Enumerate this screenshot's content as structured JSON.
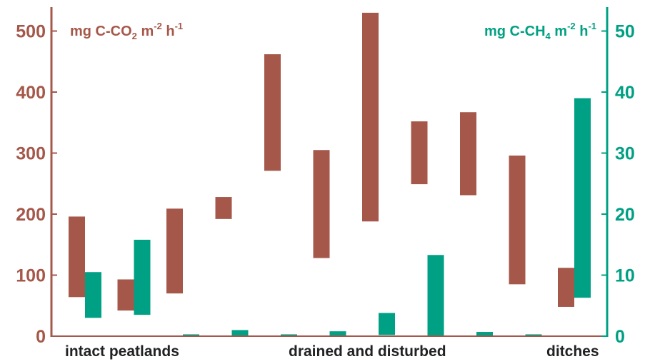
{
  "chart_data": {
    "type": "bar",
    "subtype": "floating-range",
    "colors": {
      "co2": "#a5584a",
      "ch4": "#00a084",
      "text": "#222222"
    },
    "left_axis": {
      "label_parts": [
        "mg C-CO",
        "2",
        " m",
        "-2",
        " h",
        "-1"
      ],
      "ylim": [
        0,
        535
      ],
      "ticks": [
        "0",
        "100",
        "200",
        "300",
        "400",
        "500"
      ]
    },
    "right_axis": {
      "label_parts": [
        "mg C-CH",
        "4",
        " m",
        "-2",
        " h",
        "-1"
      ],
      "ylim": [
        0,
        53.5
      ],
      "ticks": [
        "0",
        "10",
        "20",
        "30",
        "40",
        "50"
      ]
    },
    "groups": [
      "intact peatlands",
      "drained and disturbed",
      "ditches"
    ],
    "series": [
      {
        "key": "co2",
        "axis": "left",
        "ranges": [
          [
            64,
            196
          ],
          [
            42,
            93
          ],
          [
            70,
            209
          ],
          [
            192,
            228
          ],
          [
            271,
            462
          ],
          [
            128,
            305
          ],
          [
            188,
            530
          ],
          [
            249,
            352
          ],
          [
            231,
            367
          ],
          [
            85,
            296
          ],
          [
            48,
            112
          ]
        ]
      },
      {
        "key": "ch4",
        "axis": "right",
        "ranges": [
          [
            3,
            10.5
          ],
          [
            3.5,
            15.8
          ],
          [
            0,
            0.3
          ],
          [
            0,
            1.0
          ],
          [
            0,
            0.3
          ],
          [
            0,
            0.8
          ],
          [
            0.2,
            3.8
          ],
          [
            0,
            13.3
          ],
          [
            0,
            0.7
          ],
          [
            0,
            0.3
          ],
          [
            6.3,
            39.0
          ]
        ]
      }
    ],
    "grid": false,
    "legend": "none"
  }
}
